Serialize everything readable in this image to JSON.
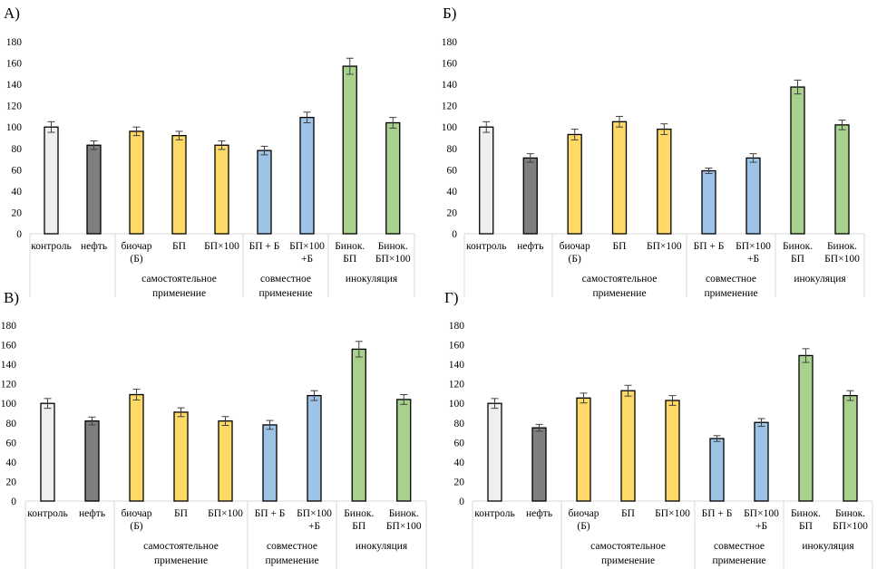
{
  "chart_data": {
    "type": "bar",
    "colors": {
      "control": "#EFEFEF",
      "oil": "#7F7F7F",
      "standalone": "#FFD966",
      "combined": "#9DC3E6",
      "inoculation": "#A9D18E",
      "bar_outline": "#000000",
      "error_bar": "#404040",
      "axis_box": "#D9D9D9"
    },
    "categories": [
      {
        "lines": [
          "контроль"
        ],
        "color_key": "control"
      },
      {
        "lines": [
          "нефть"
        ],
        "color_key": "oil"
      },
      {
        "lines": [
          "биочар",
          "(Б)"
        ],
        "color_key": "standalone"
      },
      {
        "lines": [
          "БП"
        ],
        "color_key": "standalone"
      },
      {
        "lines": [
          "БП×100"
        ],
        "color_key": "standalone"
      },
      {
        "lines": [
          "БП + Б"
        ],
        "color_key": "combined"
      },
      {
        "lines": [
          "БП×100",
          "+Б"
        ],
        "color_key": "combined"
      },
      {
        "lines": [
          "Бинок.",
          "БП"
        ],
        "color_key": "inoculation"
      },
      {
        "lines": [
          "Бинок.",
          "БП×100"
        ],
        "color_key": "inoculation"
      }
    ],
    "groups": [
      {
        "lines": [],
        "span": [
          0,
          1
        ]
      },
      {
        "lines": [
          "самостоятельное",
          "применение"
        ],
        "span": [
          2,
          4
        ]
      },
      {
        "lines": [
          "совместное",
          "применение"
        ],
        "span": [
          5,
          6
        ]
      },
      {
        "lines": [
          "инокуляция"
        ],
        "span": [
          7,
          8
        ]
      }
    ],
    "ylim": [
      0,
      180
    ],
    "yticks": [
      0,
      20,
      40,
      60,
      80,
      100,
      120,
      140,
      160,
      180
    ],
    "grid": false,
    "legend": "none",
    "panels": [
      {
        "label": "А)",
        "values": [
          100,
          83,
          96,
          92,
          83,
          78,
          109,
          157,
          104
        ],
        "errors": [
          5,
          4,
          4,
          4,
          4,
          4,
          5,
          7.5,
          5
        ]
      },
      {
        "label": "Б)",
        "values": [
          100,
          71,
          93,
          105,
          98,
          59,
          71,
          137.5,
          102
        ],
        "errors": [
          5,
          4,
          5,
          5,
          5,
          2.5,
          4,
          6.5,
          4.5
        ]
      },
      {
        "label": "В)",
        "values": [
          100,
          82,
          109,
          91,
          82,
          78,
          108,
          155.5,
          104
        ],
        "errors": [
          5,
          4,
          5.5,
          4.5,
          4.5,
          4.5,
          5,
          8,
          5
        ]
      },
      {
        "label": "Г)",
        "values": [
          100,
          75,
          105.5,
          113,
          103,
          64,
          80.5,
          149,
          108
        ],
        "errors": [
          5,
          3.5,
          5,
          5.5,
          5,
          3,
          4,
          7,
          5
        ]
      }
    ]
  }
}
